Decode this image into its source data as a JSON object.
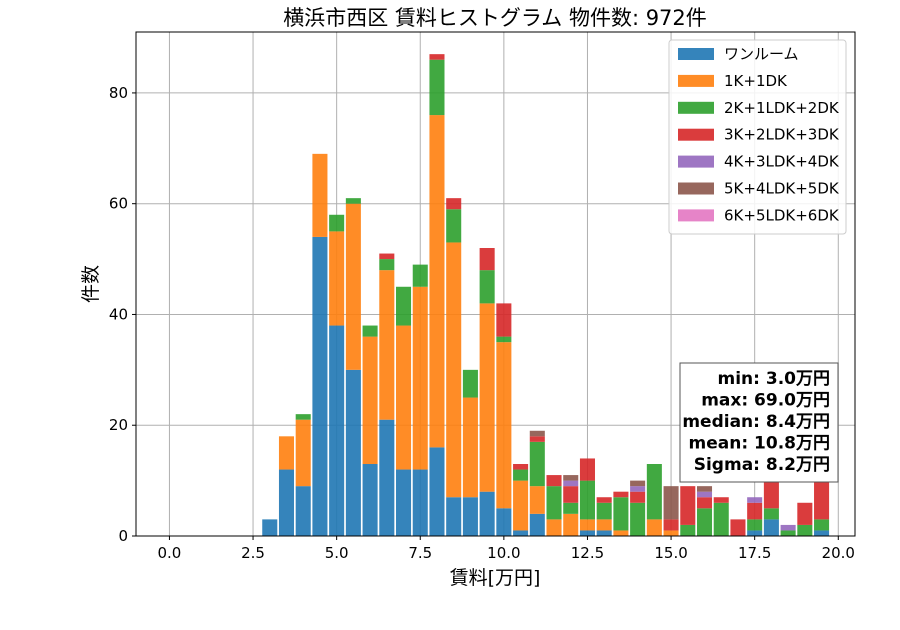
{
  "chart_data": {
    "type": "bar",
    "stacked": true,
    "title": "横浜市西区 賃料ヒストグラム 物件数: 972件",
    "xlabel": "賃料[万円]",
    "ylabel": "件数",
    "xlim": [
      -1.0,
      20.5
    ],
    "ylim": [
      0,
      91
    ],
    "xticks": [
      "0.0",
      "2.5",
      "5.0",
      "7.5",
      "10.0",
      "12.5",
      "15.0",
      "17.5",
      "20.0"
    ],
    "yticks": [
      "0",
      "20",
      "40",
      "60",
      "80"
    ],
    "grid": true,
    "legend_position": "top-right",
    "bin_width": 0.5,
    "bins": [
      3.0,
      3.5,
      4.0,
      4.5,
      5.0,
      5.5,
      6.0,
      6.5,
      7.0,
      7.5,
      8.0,
      8.5,
      9.0,
      9.5,
      10.0,
      10.5,
      11.0,
      11.5,
      12.0,
      12.5,
      13.0,
      13.5,
      14.0,
      14.5,
      15.0,
      15.5,
      16.0,
      16.5,
      17.0,
      17.5,
      18.0,
      18.5,
      19.0,
      19.5
    ],
    "series": [
      {
        "name": "ワンルーム",
        "color": "#1f77b4",
        "values": [
          3,
          12,
          9,
          54,
          38,
          30,
          13,
          21,
          12,
          12,
          16,
          7,
          7,
          8,
          5,
          1,
          4,
          0,
          0,
          1,
          1,
          0,
          0,
          0,
          0,
          0,
          0,
          0,
          0,
          1,
          3,
          0,
          0,
          1
        ]
      },
      {
        "name": "1K+1DK",
        "color": "#ff7f0e",
        "values": [
          0,
          6,
          12,
          15,
          17,
          30,
          23,
          27,
          26,
          33,
          60,
          46,
          18,
          34,
          30,
          9,
          5,
          3,
          4,
          2,
          2,
          1,
          0,
          3,
          1,
          0,
          0,
          0,
          0,
          0,
          0,
          0,
          0,
          0
        ]
      },
      {
        "name": "2K+1LDK+2DK",
        "color": "#2ca02c",
        "values": [
          0,
          0,
          1,
          0,
          3,
          1,
          2,
          2,
          7,
          4,
          10,
          6,
          5,
          6,
          1,
          2,
          8,
          6,
          2,
          7,
          3,
          6,
          6,
          10,
          0,
          2,
          5,
          6,
          0,
          2,
          2,
          1,
          2,
          2
        ]
      },
      {
        "name": "3K+2LDK+3DK",
        "color": "#d62728",
        "values": [
          0,
          0,
          0,
          0,
          0,
          0,
          0,
          1,
          0,
          0,
          1,
          2,
          0,
          4,
          6,
          1,
          1,
          2,
          3,
          4,
          1,
          1,
          2,
          0,
          2,
          7,
          2,
          1,
          3,
          3,
          5,
          0,
          4,
          7
        ]
      },
      {
        "name": "4K+3LDK+4DK",
        "color": "#9467bd",
        "values": [
          0,
          0,
          0,
          0,
          0,
          0,
          0,
          0,
          0,
          0,
          0,
          0,
          0,
          0,
          0,
          0,
          0,
          0,
          1,
          0,
          0,
          0,
          1,
          0,
          0,
          0,
          1,
          0,
          0,
          1,
          0,
          1,
          0,
          0
        ]
      },
      {
        "name": "5K+4LDK+5DK",
        "color": "#8c564b",
        "values": [
          0,
          0,
          0,
          0,
          0,
          0,
          0,
          0,
          0,
          0,
          0,
          0,
          0,
          0,
          0,
          0,
          1,
          0,
          1,
          0,
          0,
          0,
          1,
          0,
          6,
          0,
          1,
          0,
          0,
          0,
          0,
          0,
          0,
          0
        ]
      },
      {
        "name": "6K+5LDK+6DK",
        "color": "#e377c2",
        "values": [
          0,
          0,
          0,
          0,
          0,
          0,
          0,
          0,
          0,
          0,
          0,
          0,
          0,
          0,
          0,
          0,
          0,
          0,
          0,
          0,
          0,
          0,
          0,
          0,
          0,
          0,
          0,
          0,
          0,
          0,
          0,
          0,
          0,
          0
        ]
      }
    ],
    "stats": [
      "min: 3.0万円",
      "max: 69.0万円",
      "median: 8.4万円",
      "mean: 10.8万円",
      "Sigma: 8.2万円"
    ]
  }
}
